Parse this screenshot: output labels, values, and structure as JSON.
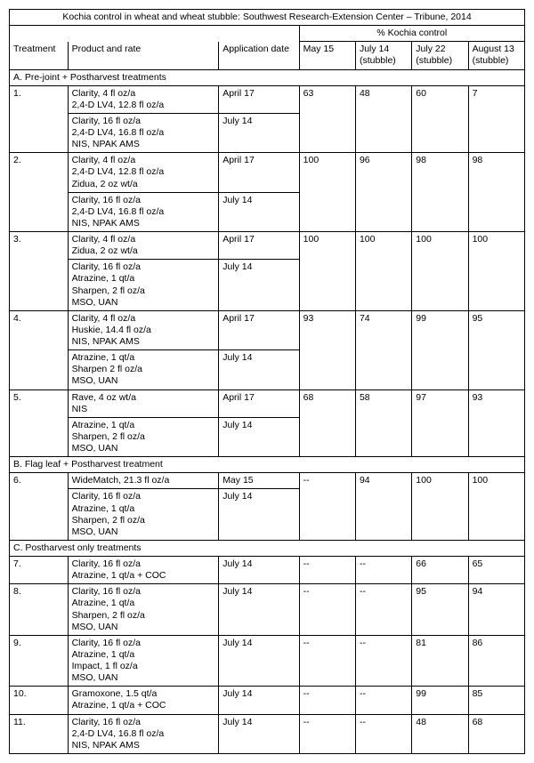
{
  "title": "Kochia control in wheat and wheat stubble: Southwest Research-Extension Center – Tribune, 2014",
  "spanHeader": "% Kochia control",
  "headers": {
    "treatment": "Treatment",
    "product": "Product and rate",
    "appdate": "Application date",
    "c1": "May 15",
    "c2": "July 14 (stubble)",
    "c3": "July 22 (stubble)",
    "c4": "August 13 (stubble)"
  },
  "sectionA": "A. Pre-joint + Postharvest treatments",
  "r1n": "1.",
  "r1p1": "Clarity, 4 fl oz/a\n2,4-D LV4, 12.8 fl oz/a",
  "r1d1": "April 17",
  "r1v1": "63",
  "r1v2": "48",
  "r1v3": "60",
  "r1v4": "7",
  "r1p2": "Clarity, 16 fl oz/a\n2,4-D LV4, 16.8 fl oz/a\nNIS, NPAK AMS",
  "r1d2": "July 14",
  "r2n": "2.",
  "r2p1": "Clarity, 4 fl oz/a\n2,4-D LV4, 12.8 fl oz/a\nZidua, 2 oz wt/a",
  "r2d1": "April 17",
  "r2v1": "100",
  "r2v2": "96",
  "r2v3": "98",
  "r2v4": "98",
  "r2p2": "Clarity, 16 fl oz/a\n2,4-D LV4, 16.8 fl oz/a\nNIS, NPAK AMS",
  "r2d2": "July 14",
  "r3n": "3.",
  "r3p1": "Clarity, 4 fl oz/a\nZidua, 2 oz wt/a",
  "r3d1": "April 17",
  "r3v1": "100",
  "r3v2": "100",
  "r3v3": "100",
  "r3v4": "100",
  "r3p2": "Clarity, 16 fl oz/a\nAtrazine, 1 qt/a\nSharpen, 2 fl oz/a\nMSO, UAN",
  "r3d2": "July 14",
  "r4n": "4.",
  "r4p1": "Clarity, 4 fl oz/a\nHuskie, 14.4 fl oz/a\nNIS, NPAK AMS",
  "r4d1": "April 17",
  "r4v1": "93",
  "r4v2": "74",
  "r4v3": "99",
  "r4v4": "95",
  "r4p2": "Atrazine, 1 qt/a\nSharpen 2 fl oz/a\nMSO, UAN",
  "r4d2": "July 14",
  "r5n": "5.",
  "r5p1": "Rave, 4 oz wt/a\nNIS",
  "r5d1": "April 17",
  "r5v1": "68",
  "r5v2": "58",
  "r5v3": "97",
  "r5v4": "93",
  "r5p2": "Atrazine, 1 qt/a\nSharpen, 2 fl oz/a\nMSO, UAN",
  "r5d2": "July 14",
  "sectionB": "B. Flag leaf + Postharvest treatment",
  "r6n": "6.",
  "r6p1": "WideMatch, 21.3 fl oz/a",
  "r6d1": "May 15",
  "r6v1": "--",
  "r6v2": "94",
  "r6v3": "100",
  "r6v4": "100",
  "r6p2": "Clarity, 16 fl oz/a\nAtrazine, 1 qt/a\nSharpen, 2 fl oz/a\nMSO, UAN",
  "r6d2": "July 14",
  "sectionC": "C. Postharvest only treatments",
  "r7n": "7.",
  "r7p": "Clarity, 16 fl oz/a\nAtrazine, 1 qt/a + COC",
  "r7d": "July 14",
  "dash": "--",
  "r7v3": "66",
  "r7v4": "65",
  "r8n": "8.",
  "r8p": "Clarity, 16 fl oz/a\nAtrazine, 1 qt/a\nSharpen, 2 fl oz/a\nMSO, UAN",
  "r8d": "July 14",
  "r8v3": "95",
  "r8v4": "94",
  "r9n": "9.",
  "r9p": "Clarity, 16 fl oz/a\nAtrazine, 1 qt/a\nImpact, 1 fl oz/a\nMSO, UAN",
  "r9d": "July 14",
  "r9v3": "81",
  "r9v4": "86",
  "r10n": "10.",
  "r10p": "Gramoxone, 1.5 qt/a\nAtrazine, 1 qt/a + COC",
  "r10d": "July 14",
  "r10v3": "99",
  "r10v4": "85",
  "r11n": "11.",
  "r11p": "Clarity, 16 fl oz/a\n2,4-D LV4, 16.8 fl oz/a\nNIS, NPAK AMS",
  "r11d": "July 14",
  "r11v3": "48",
  "r11v4": "68"
}
